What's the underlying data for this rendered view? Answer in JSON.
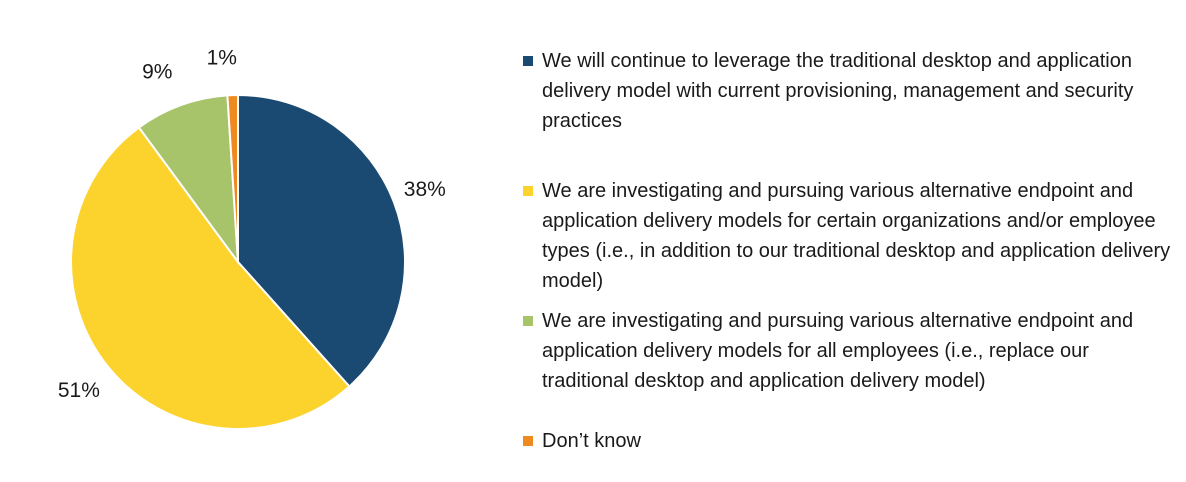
{
  "chart_data": {
    "type": "pie",
    "title": "",
    "slices": [
      {
        "label": "We will continue to leverage the traditional desktop and application delivery model with current provisioning, management and security practices",
        "value": 38,
        "display": "38%",
        "color": "#1a4a72"
      },
      {
        "label": "We are investigating and pursuing various alternative endpoint and application delivery models for certain organizations and/or employee types (i.e., in addition to our traditional desktop and application delivery model)",
        "value": 51,
        "display": "51%",
        "color": "#fcd22c"
      },
      {
        "label": "We are investigating and pursuing various alternative endpoint and application delivery models for all employees (i.e., replace our traditional desktop and application delivery model)",
        "value": 9,
        "display": "9%",
        "color": "#a7c46b"
      },
      {
        "label": "Don’t know",
        "value": 1,
        "display": "1%",
        "color": "#ef8a1e"
      }
    ],
    "legend_position": "right",
    "start": "top",
    "direction": "clockwise"
  }
}
